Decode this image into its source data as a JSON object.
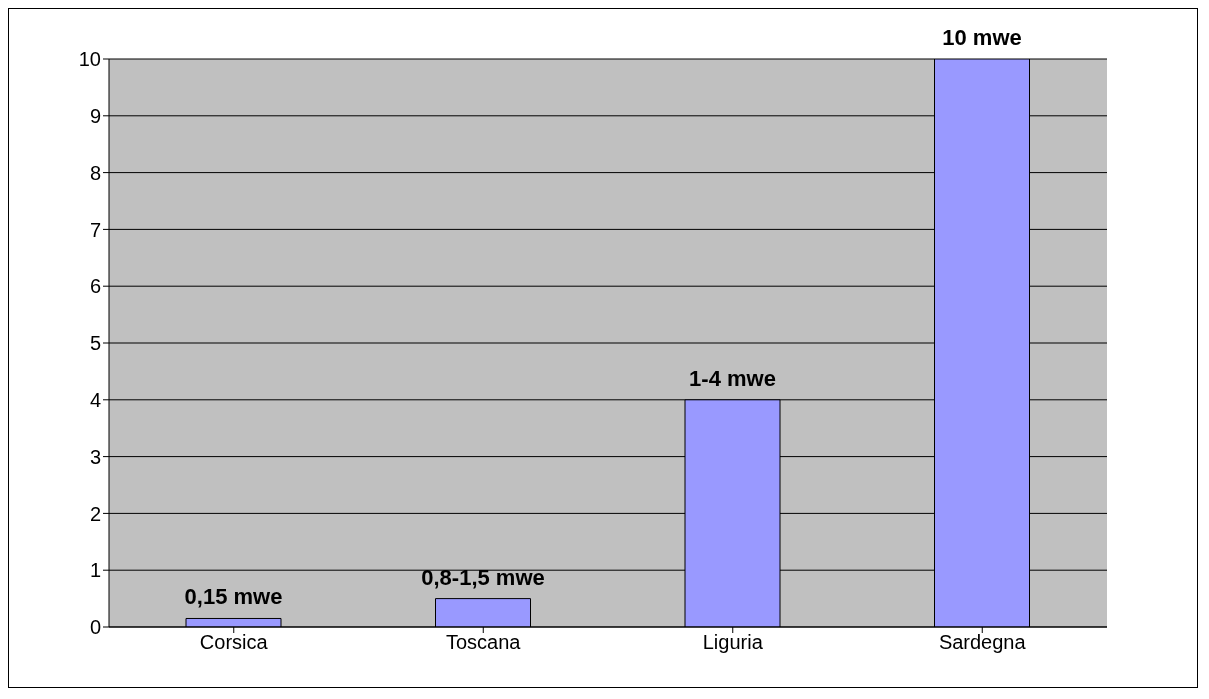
{
  "chart_data": {
    "type": "bar",
    "categories": [
      "Corsica",
      "Toscana",
      "Liguria",
      "Sardegna"
    ],
    "values": [
      0.15,
      0.5,
      4.0,
      10.0
    ],
    "value_labels": [
      "0,15 mwe",
      "0,8-1,5 mwe",
      "1-4 mwe",
      "10 mwe"
    ],
    "color": "#9999ff",
    "ylim": [
      0,
      10
    ],
    "yticks": [
      0,
      1,
      2,
      3,
      4,
      5,
      6,
      7,
      8,
      9,
      10
    ],
    "grid": "y"
  }
}
